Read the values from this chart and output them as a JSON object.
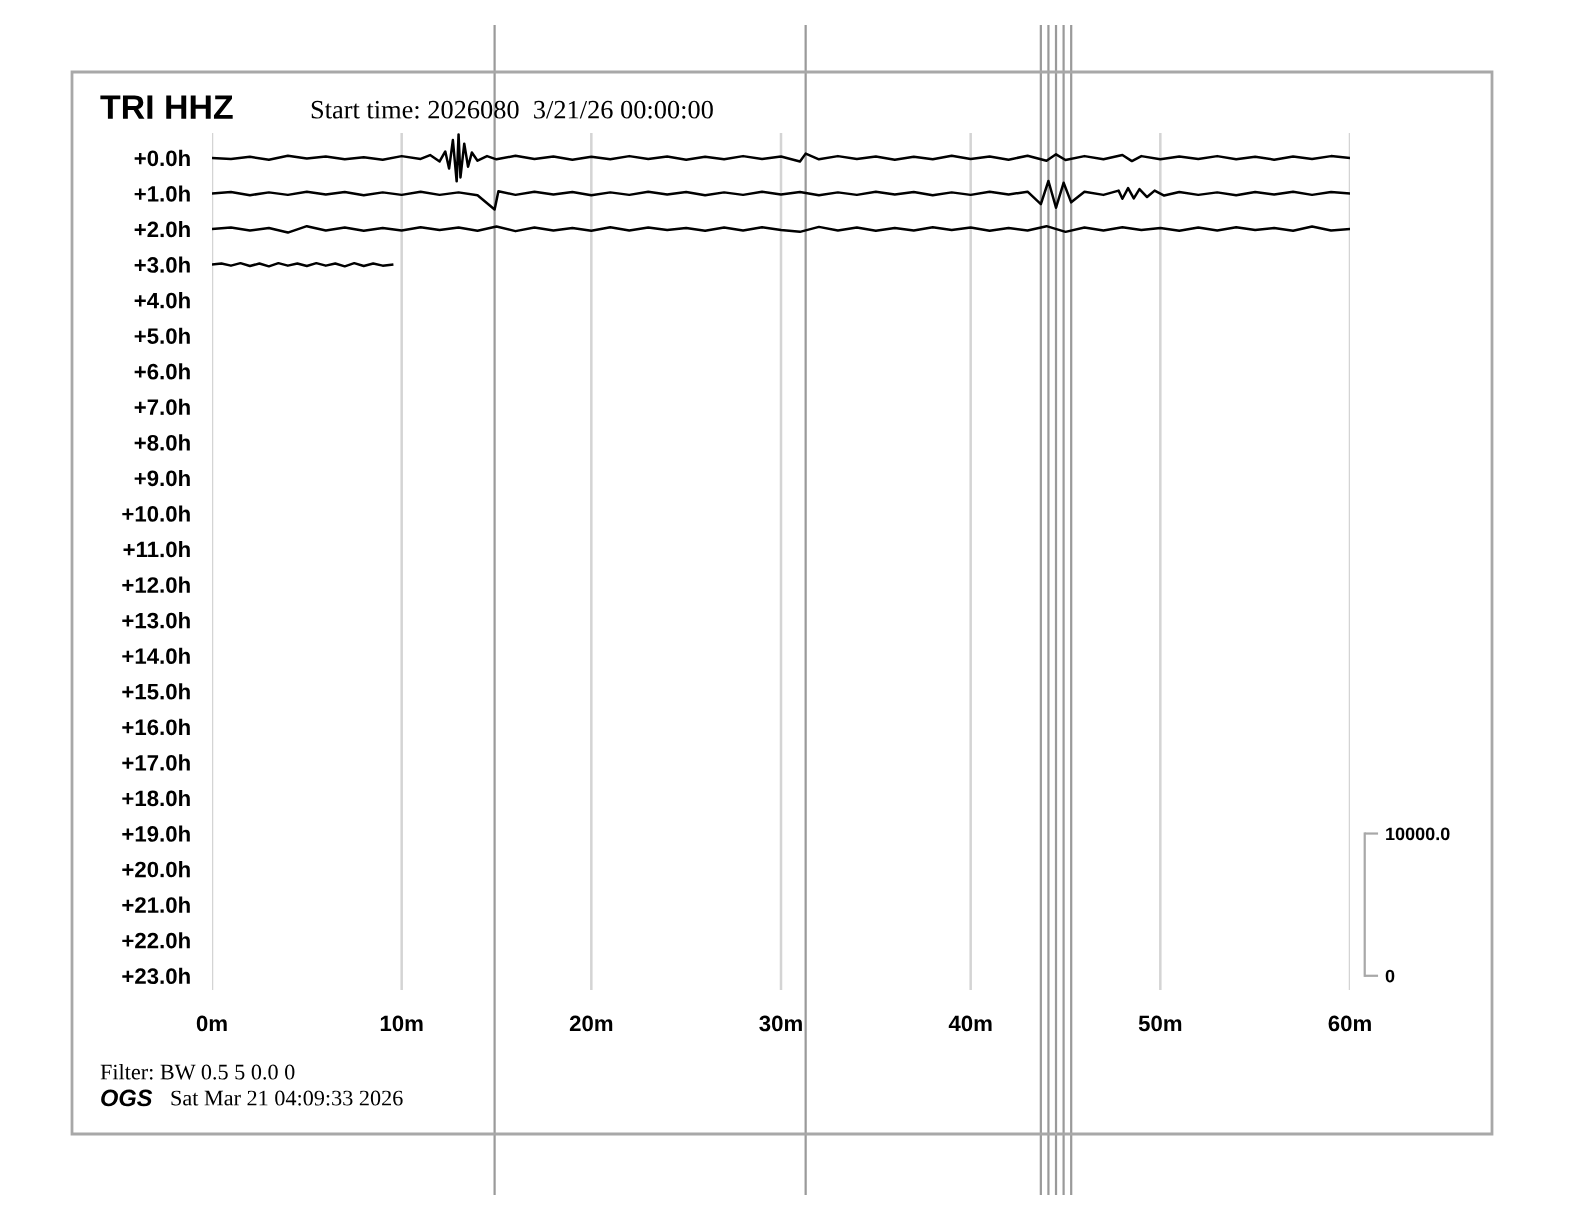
{
  "chart_data": {
    "type": "line",
    "title": "TRI HHZ",
    "subtitle": "Start time: 2026080  3/21/26 00:00:00",
    "annotations": [
      "Filter: BW 0.5 5 0.0 0",
      "OGS",
      "Sat Mar 21 04:09:33 2026"
    ],
    "series": [
      {
        "color": "#000000",
        "x": [
          0,
          1,
          2,
          3,
          4,
          5,
          6,
          7,
          8,
          9,
          10,
          11,
          11.5,
          12,
          12.3,
          12.5,
          12.7,
          12.9,
          13.0,
          13.1,
          13.3,
          13.5,
          13.7,
          14,
          14.5,
          15,
          16,
          17,
          18,
          19,
          20,
          21,
          22,
          23,
          24,
          25,
          26,
          27,
          28,
          29,
          30,
          31,
          31.3,
          32,
          33,
          34,
          35,
          36,
          37,
          38,
          39,
          40,
          41,
          42,
          43,
          44,
          44.5,
          45,
          46,
          47,
          48,
          48.5,
          49,
          50,
          51,
          52,
          53,
          54,
          55,
          56,
          57,
          58,
          59,
          60
        ],
        "values": [
          0,
          0.03,
          -0.03,
          0.05,
          -0.06,
          0.02,
          -0.04,
          0.04,
          -0.02,
          0.05,
          -0.05,
          0.03,
          -0.08,
          0.1,
          -0.18,
          0.3,
          -0.5,
          0.66,
          -0.66,
          0.55,
          -0.4,
          0.25,
          -0.15,
          0.08,
          -0.05,
          0.04,
          -0.06,
          0.03,
          -0.04,
          0.05,
          -0.03,
          0.04,
          -0.05,
          0.03,
          -0.04,
          0.05,
          -0.03,
          0.04,
          -0.05,
          0.03,
          -0.04,
          0.1,
          -0.12,
          0.04,
          -0.05,
          0.03,
          -0.04,
          0.05,
          -0.03,
          0.04,
          -0.06,
          0.03,
          -0.04,
          0.05,
          -0.06,
          0.08,
          -0.1,
          0.06,
          -0.05,
          0.04,
          -0.08,
          0.09,
          -0.05,
          0.04,
          -0.04,
          0.03,
          -0.05,
          0.04,
          -0.03,
          0.05,
          -0.04,
          0.03,
          -0.05,
          0
        ]
      },
      {
        "color": "#000000",
        "x": [
          0,
          1,
          2,
          3,
          4,
          5,
          6,
          7,
          8,
          9,
          10,
          11,
          12,
          13,
          14,
          14.9,
          15.1,
          16,
          17,
          18,
          19,
          20,
          21,
          22,
          23,
          24,
          25,
          26,
          27,
          28,
          29,
          30,
          31,
          32,
          33,
          34,
          35,
          36,
          37,
          38,
          39,
          40,
          41,
          42,
          43,
          43.7,
          44.1,
          44.5,
          44.9,
          45.3,
          46,
          47,
          47.8,
          48.0,
          48.3,
          48.6,
          48.9,
          49.3,
          49.7,
          50.2,
          51,
          52,
          53,
          54,
          55,
          56,
          57,
          58,
          59,
          60
        ],
        "values": [
          1,
          0.96,
          1.05,
          0.97,
          1.04,
          0.95,
          1.03,
          0.96,
          1.05,
          0.97,
          1.04,
          0.95,
          1.04,
          0.97,
          1.05,
          1.45,
          0.94,
          1.04,
          0.95,
          1.03,
          0.96,
          1.05,
          0.97,
          1.04,
          0.95,
          1.03,
          0.96,
          1.05,
          0.97,
          1.04,
          0.95,
          1.03,
          0.96,
          1.05,
          0.97,
          1.04,
          0.95,
          1.03,
          0.96,
          1.05,
          0.97,
          1.04,
          0.95,
          1.03,
          0.95,
          1.3,
          0.65,
          1.4,
          0.7,
          1.25,
          0.95,
          1.04,
          0.92,
          1.15,
          0.85,
          1.14,
          0.88,
          1.1,
          0.92,
          1.06,
          0.96,
          1.04,
          0.97,
          1.05,
          0.96,
          1.03,
          0.95,
          1.04,
          0.96,
          1
        ]
      },
      {
        "color": "#000000",
        "x": [
          0,
          1,
          2,
          3,
          4,
          5,
          6,
          7,
          8,
          9,
          10,
          11,
          12,
          13,
          14,
          15,
          16,
          17,
          18,
          19,
          20,
          21,
          22,
          23,
          24,
          25,
          26,
          27,
          28,
          29,
          30,
          31,
          32,
          33,
          34,
          35,
          36,
          37,
          38,
          39,
          40,
          41,
          42,
          43,
          44,
          45,
          46,
          47,
          48,
          49,
          50,
          51,
          52,
          53,
          54,
          55,
          56,
          57,
          58,
          59,
          60
        ],
        "values": [
          2,
          1.96,
          2.04,
          1.97,
          2.1,
          1.92,
          2.04,
          1.96,
          2.05,
          1.97,
          2.04,
          1.95,
          2.03,
          1.96,
          2.05,
          1.93,
          2.06,
          1.96,
          2.04,
          1.97,
          2.05,
          1.95,
          2.04,
          1.96,
          2.03,
          1.97,
          2.05,
          1.96,
          2.04,
          1.95,
          2.03,
          2.08,
          1.94,
          2.04,
          1.96,
          2.05,
          1.97,
          2.04,
          1.95,
          2.03,
          1.96,
          2.05,
          1.97,
          2.04,
          1.92,
          2.08,
          1.96,
          2.04,
          1.95,
          2.03,
          1.97,
          2.05,
          1.96,
          2.04,
          1.95,
          2.03,
          1.97,
          2.05,
          1.93,
          2.04,
          2
        ]
      },
      {
        "color": "#000000",
        "x": [
          0,
          0.5,
          1,
          1.5,
          2,
          2.5,
          3,
          3.5,
          4,
          4.5,
          5,
          5.5,
          6,
          6.5,
          7,
          7.5,
          8,
          8.5,
          9,
          9.5
        ],
        "values": [
          3,
          2.97,
          3.03,
          2.96,
          3.04,
          2.97,
          3.05,
          2.96,
          3.03,
          2.97,
          3.04,
          2.96,
          3.03,
          2.97,
          3.05,
          2.96,
          3.04,
          2.97,
          3.03,
          3
        ]
      }
    ],
    "xlim": [
      0,
      60
    ],
    "xticks": [
      {
        "value": 0,
        "label": "0m"
      },
      {
        "value": 10,
        "label": "10m"
      },
      {
        "value": 20,
        "label": "20m"
      },
      {
        "value": 30,
        "label": "30m"
      },
      {
        "value": 40,
        "label": "40m"
      },
      {
        "value": 50,
        "label": "50m"
      },
      {
        "value": 60,
        "label": "60m"
      }
    ],
    "ylim": [
      23.4,
      -0.7
    ],
    "yticks": [
      {
        "value": 0,
        "label": "+0.0h"
      },
      {
        "value": 1,
        "label": "+1.0h"
      },
      {
        "value": 2,
        "label": "+2.0h"
      },
      {
        "value": 3,
        "label": "+3.0h"
      },
      {
        "value": 4,
        "label": "+4.0h"
      },
      {
        "value": 5,
        "label": "+5.0h"
      },
      {
        "value": 6,
        "label": "+6.0h"
      },
      {
        "value": 7,
        "label": "+7.0h"
      },
      {
        "value": 8,
        "label": "+8.0h"
      },
      {
        "value": 9,
        "label": "+9.0h"
      },
      {
        "value": 10,
        "label": "+10.0h"
      },
      {
        "value": 11,
        "label": "+11.0h"
      },
      {
        "value": 12,
        "label": "+12.0h"
      },
      {
        "value": 13,
        "label": "+13.0h"
      },
      {
        "value": 14,
        "label": "+14.0h"
      },
      {
        "value": 15,
        "label": "+15.0h"
      },
      {
        "value": 16,
        "label": "+16.0h"
      },
      {
        "value": 17,
        "label": "+17.0h"
      },
      {
        "value": 18,
        "label": "+18.0h"
      },
      {
        "value": 19,
        "label": "+19.0h"
      },
      {
        "value": 20,
        "label": "+20.0h"
      },
      {
        "value": 21,
        "label": "+21.0h"
      },
      {
        "value": 22,
        "label": "+22.0h"
      },
      {
        "value": 23,
        "label": "+23.0h"
      }
    ],
    "y2lim": [
      -1000,
      59250
    ],
    "y2ticks": [
      0,
      {
        "value": 10000,
        "label": "10000.0"
      }
    ],
    "grid": "x",
    "ref_lines": [
      {
        "axis": "x",
        "value": 14.9,
        "color": "#9a9a9a"
      },
      {
        "axis": "x",
        "value": 31.3,
        "color": "#9a9a9a"
      },
      {
        "axis": "x",
        "value": 43.7,
        "color": "#9a9a9a"
      },
      {
        "axis": "x",
        "value": 44.1,
        "color": "#9a9a9a"
      },
      {
        "axis": "x",
        "value": 44.5,
        "color": "#9a9a9a"
      },
      {
        "axis": "x",
        "value": 44.9,
        "color": "#9a9a9a"
      },
      {
        "axis": "x",
        "value": 45.3,
        "color": "#9a9a9a"
      }
    ]
  }
}
